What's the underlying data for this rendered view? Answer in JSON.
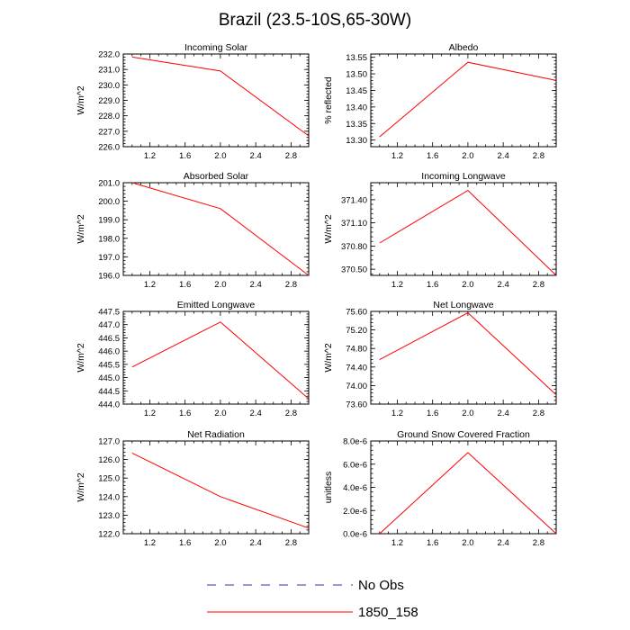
{
  "title": "Brazil (23.5-10S,65-30W)",
  "colors": {
    "model": "#ff0000",
    "obs": "#3333aa",
    "axis": "#000000"
  },
  "legend": [
    {
      "label": "No Obs",
      "style": "dashed",
      "color": "#3333aa"
    },
    {
      "label": "1850_158",
      "style": "solid",
      "color": "#ff0000"
    }
  ],
  "chart_data": [
    {
      "type": "line",
      "title": "Incoming Solar",
      "ylabel": "W/m^2",
      "x": [
        1,
        2,
        3
      ],
      "values": [
        231.8,
        230.9,
        226.7
      ],
      "xlim": [
        0.9,
        3.0
      ],
      "ylim": [
        226.0,
        232.0
      ],
      "xticks": [
        "1.2",
        "1.6",
        "2.0",
        "2.4",
        "2.8"
      ],
      "yticks": [
        "226.0",
        "227.0",
        "228.0",
        "229.0",
        "230.0",
        "231.0",
        "232.0"
      ]
    },
    {
      "type": "line",
      "title": "Albedo",
      "ylabel": "% reflected",
      "x": [
        1,
        2,
        3
      ],
      "values": [
        13.31,
        13.535,
        13.48
      ],
      "xlim": [
        0.9,
        3.0
      ],
      "ylim": [
        13.28,
        13.56
      ],
      "xticks": [
        "1.2",
        "1.6",
        "2.0",
        "2.4",
        "2.8"
      ],
      "yticks": [
        "13.30",
        "13.35",
        "13.40",
        "13.45",
        "13.50",
        "13.55"
      ]
    },
    {
      "type": "line",
      "title": "Absorbed Solar",
      "ylabel": "W/m^2",
      "x": [
        1,
        2,
        3
      ],
      "values": [
        201.0,
        199.6,
        196.0
      ],
      "xlim": [
        0.9,
        3.0
      ],
      "ylim": [
        196.0,
        201.0
      ],
      "xticks": [
        "1.2",
        "1.6",
        "2.0",
        "2.4",
        "2.8"
      ],
      "yticks": [
        "196.0",
        "197.0",
        "198.0",
        "199.0",
        "200.0",
        "201.0"
      ]
    },
    {
      "type": "line",
      "title": "Incoming Longwave",
      "ylabel": "W/m^2",
      "x": [
        1,
        2,
        3
      ],
      "values": [
        370.84,
        371.52,
        370.42
      ],
      "xlim": [
        0.9,
        3.0
      ],
      "ylim": [
        370.42,
        371.62
      ],
      "xticks": [
        "1.2",
        "1.6",
        "2.0",
        "2.4",
        "2.8"
      ],
      "yticks": [
        "370.50",
        "370.80",
        "371.10",
        "371.40"
      ]
    },
    {
      "type": "line",
      "title": "Emitted Longwave",
      "ylabel": "W/m^2",
      "x": [
        1,
        2,
        3
      ],
      "values": [
        445.4,
        447.1,
        444.2
      ],
      "xlim": [
        0.9,
        3.0
      ],
      "ylim": [
        444.0,
        447.5
      ],
      "xticks": [
        "1.2",
        "1.6",
        "2.0",
        "2.4",
        "2.8"
      ],
      "yticks": [
        "444.0",
        "444.5",
        "445.0",
        "445.5",
        "446.0",
        "446.5",
        "447.0",
        "447.5"
      ]
    },
    {
      "type": "line",
      "title": "Net Longwave",
      "ylabel": "W/m^2",
      "x": [
        1,
        2,
        3
      ],
      "values": [
        74.56,
        75.57,
        73.8
      ],
      "xlim": [
        0.9,
        3.0
      ],
      "ylim": [
        73.6,
        75.6
      ],
      "xticks": [
        "1.2",
        "1.6",
        "2.0",
        "2.4",
        "2.8"
      ],
      "yticks": [
        "73.60",
        "74.00",
        "74.40",
        "74.80",
        "75.20",
        "75.60"
      ]
    },
    {
      "type": "line",
      "title": "Net Radiation",
      "ylabel": "W/m^2",
      "x": [
        1,
        2,
        3
      ],
      "values": [
        126.35,
        124.0,
        122.3
      ],
      "xlim": [
        0.9,
        3.0
      ],
      "ylim": [
        122.0,
        127.0
      ],
      "xticks": [
        "1.2",
        "1.6",
        "2.0",
        "2.4",
        "2.8"
      ],
      "yticks": [
        "122.0",
        "123.0",
        "124.0",
        "125.0",
        "126.0",
        "127.0"
      ]
    },
    {
      "type": "line",
      "title": "Ground Snow Covered Fraction",
      "ylabel": "unitless",
      "x": [
        1,
        2,
        3
      ],
      "values": [
        0.0,
        7e-06,
        0.0
      ],
      "xlim": [
        0.9,
        3.0
      ],
      "ylim": [
        0.0,
        8e-06
      ],
      "xticks": [
        "1.2",
        "1.6",
        "2.0",
        "2.4",
        "2.8"
      ],
      "yticks": [
        "0.0e-6",
        "2.0e-6",
        "4.0e-6",
        "6.0e-6",
        "8.0e-6"
      ]
    }
  ]
}
